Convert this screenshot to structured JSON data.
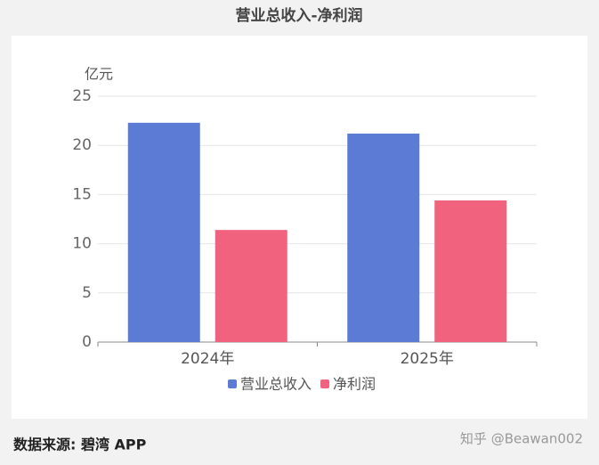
{
  "chart_data": {
    "type": "bar",
    "title": "营业总收入-净利润",
    "y_unit": "亿元",
    "categories": [
      "2024年",
      "2025年"
    ],
    "series": [
      {
        "name": "营业总收入",
        "color": "#5b7bd5",
        "values": [
          22.3,
          21.2
        ]
      },
      {
        "name": "净利润",
        "color": "#f0627d",
        "values": [
          11.4,
          14.4
        ]
      }
    ],
    "ylim": [
      0,
      25
    ],
    "yticks": [
      0,
      5,
      10,
      15,
      20,
      25
    ],
    "grid": true,
    "legend": "bottom",
    "source": "数据来源: 碧湾 APP",
    "watermark": "知乎 @Beawan002"
  }
}
